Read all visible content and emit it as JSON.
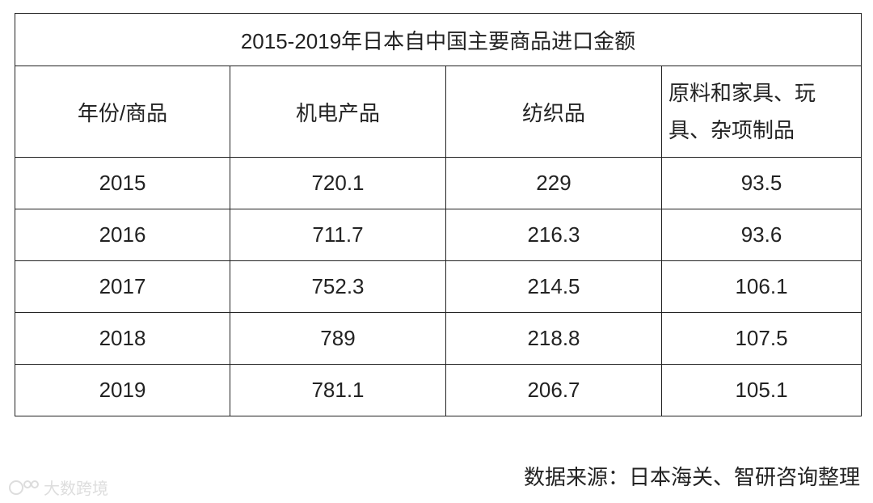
{
  "table": {
    "title": "2015-2019年日本自中国主要商品进口金额",
    "header": [
      "年份/商品",
      "机电产品",
      "纺织品",
      "原料和家具、玩具、杂项制品"
    ],
    "rows": [
      [
        "2015",
        "720.1",
        "229",
        "93.5"
      ],
      [
        "2016",
        "711.7",
        "216.3",
        "93.6"
      ],
      [
        "2017",
        "752.3",
        "214.5",
        "106.1"
      ],
      [
        "2018",
        "789",
        "218.8",
        "107.5"
      ],
      [
        "2019",
        "781.1",
        "206.7",
        "105.1"
      ]
    ]
  },
  "source": "数据来源：日本海关、智研咨询整理",
  "watermark": "大数跨境"
}
